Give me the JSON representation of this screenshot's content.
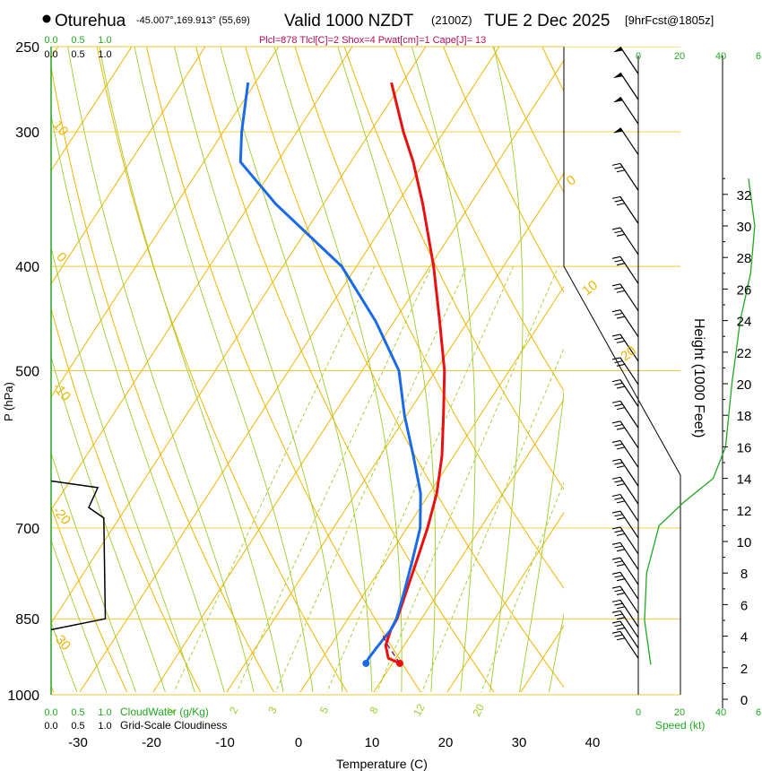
{
  "header": {
    "station": "Oturehua",
    "coords": "-45.007°,169.913° (55,69)",
    "valid": "Valid 1000 NZDT",
    "utc": "(2100Z)",
    "date": "TUE 2 Dec 2025",
    "forecast": "[9hrFcst@1805z]",
    "indices": "Plcl=878 Tlcl[C]=2 Shox=4 Pwat[cm]=1 Cape[J]= 13"
  },
  "colors": {
    "temperature": "#e81010",
    "dewpoint": "#1a6ae8",
    "isotherm": "#f0b400",
    "isobar": "#f0c830",
    "dry_adiabat": "#f0b400",
    "moist_adiabat": "#9ccc2c",
    "mixing_ratio": "#9ccc2c",
    "green_text": "#22a822",
    "parcel": "#7a2a7a",
    "index_text": "#b0105a"
  },
  "chart_data": {
    "type": "skew-t",
    "title": "Valid 1000 NZDT (2100Z) TUE 2 Dec 2025",
    "xlabel": "Temperature (C)",
    "ylabel": "P (hPa)",
    "x_ticks": [
      -30,
      -20,
      -10,
      0,
      10,
      20,
      30,
      40
    ],
    "p_ticks": [
      250,
      300,
      400,
      500,
      700,
      850,
      1000
    ],
    "height_label": "Height (1000 Feet)",
    "height_ticks": [
      0,
      2,
      4,
      6,
      8,
      10,
      12,
      14,
      16,
      18,
      20,
      22,
      24,
      26,
      28,
      30,
      32
    ],
    "isotherm_labels": [
      {
        "text": "10",
        "temp": 10,
        "pressure": 300
      },
      {
        "text": "0",
        "temp": 0,
        "pressure": 400
      },
      {
        "text": "-10",
        "temp": -10,
        "pressure": 535
      },
      {
        "text": "-20",
        "temp": -20,
        "pressure": 700
      },
      {
        "text": "-30",
        "temp": -30,
        "pressure": 905
      },
      {
        "text": "0",
        "temp": 0,
        "pressure": 332
      },
      {
        "text": "10",
        "temp": 10,
        "pressure": 430
      },
      {
        "text": "20",
        "temp": 20,
        "pressure": 500
      },
      {
        "text": "30",
        "temp": 30,
        "pressure": 590
      }
    ],
    "mixing_ratio_labels": [
      "1",
      "2",
      "3",
      "5",
      "8",
      "12",
      "20"
    ],
    "temperature": [
      {
        "p": 935,
        "t": 11.0
      },
      {
        "p": 925,
        "t": 9.0
      },
      {
        "p": 900,
        "t": 7.5
      },
      {
        "p": 870,
        "t": 6.8
      },
      {
        "p": 850,
        "t": 6.7
      },
      {
        "p": 800,
        "t": 5.5
      },
      {
        "p": 750,
        "t": 4.2
      },
      {
        "p": 700,
        "t": 2.8
      },
      {
        "p": 650,
        "t": 1.0
      },
      {
        "p": 600,
        "t": -1.6
      },
      {
        "p": 550,
        "t": -5.0
      },
      {
        "p": 500,
        "t": -8.8
      },
      {
        "p": 450,
        "t": -13.8
      },
      {
        "p": 400,
        "t": -19.5
      },
      {
        "p": 350,
        "t": -26.5
      },
      {
        "p": 320,
        "t": -31.5
      },
      {
        "p": 300,
        "t": -35.5
      },
      {
        "p": 270,
        "t": -41.5
      }
    ],
    "dewpoint": [
      {
        "p": 935,
        "t": 6.4
      },
      {
        "p": 925,
        "t": 6.3
      },
      {
        "p": 900,
        "t": 6.5
      },
      {
        "p": 870,
        "t": 6.8
      },
      {
        "p": 850,
        "t": 6.6
      },
      {
        "p": 800,
        "t": 5.2
      },
      {
        "p": 750,
        "t": 3.6
      },
      {
        "p": 700,
        "t": 1.8
      },
      {
        "p": 650,
        "t": -1.2
      },
      {
        "p": 600,
        "t": -5.5
      },
      {
        "p": 550,
        "t": -10.3
      },
      {
        "p": 500,
        "t": -15.0
      },
      {
        "p": 450,
        "t": -22.5
      },
      {
        "p": 400,
        "t": -32.0
      },
      {
        "p": 350,
        "t": -46.5
      },
      {
        "p": 320,
        "t": -55.0
      },
      {
        "p": 300,
        "t": -57.5
      },
      {
        "p": 270,
        "t": -61.0
      }
    ],
    "parcel": [
      {
        "p": 935,
        "t": 11.0
      },
      {
        "p": 900,
        "t": 7.8
      },
      {
        "p": 878,
        "t": 6.0
      }
    ],
    "cloudiness_profile": [
      {
        "p": 633,
        "v": 0.0
      },
      {
        "p": 642,
        "v": 0.62
      },
      {
        "p": 670,
        "v": 0.5
      },
      {
        "p": 685,
        "v": 0.7
      },
      {
        "p": 850,
        "v": 0.72
      },
      {
        "p": 870,
        "v": 0.0
      }
    ],
    "wind_speed_profile": [
      {
        "h": 2.2,
        "v": 0.6
      },
      {
        "h": 5,
        "v": 0.3
      },
      {
        "h": 8,
        "v": 0.4
      },
      {
        "h": 11,
        "v": 1.0
      },
      {
        "h": 12.5,
        "v": 2.2
      },
      {
        "h": 14,
        "v": 3.6
      },
      {
        "h": 16,
        "v": 4.2
      },
      {
        "h": 20,
        "v": 4.5
      },
      {
        "h": 24,
        "v": 4.9
      },
      {
        "h": 27,
        "v": 5.4
      },
      {
        "h": 30,
        "v": 5.6
      },
      {
        "h": 33,
        "v": 5.3
      }
    ],
    "wind_barbs": [
      {
        "p": 265,
        "flags": 1
      },
      {
        "p": 280,
        "flags": 1
      },
      {
        "p": 295,
        "flags": 1
      },
      {
        "p": 315,
        "flags": 1
      },
      {
        "p": 340,
        "flags": 0
      },
      {
        "p": 365,
        "flags": 0
      },
      {
        "p": 390,
        "flags": 0
      },
      {
        "p": 415,
        "flags": 0
      },
      {
        "p": 440,
        "flags": 0
      },
      {
        "p": 465,
        "flags": 0
      },
      {
        "p": 490,
        "flags": 0
      },
      {
        "p": 515,
        "flags": 0
      },
      {
        "p": 540,
        "flags": 0
      },
      {
        "p": 565,
        "flags": 0
      },
      {
        "p": 590,
        "flags": 0
      },
      {
        "p": 615,
        "flags": 0
      },
      {
        "p": 640,
        "flags": 0
      },
      {
        "p": 665,
        "flags": 0
      },
      {
        "p": 690,
        "flags": 0
      },
      {
        "p": 715,
        "flags": 0
      },
      {
        "p": 740,
        "flags": 0
      },
      {
        "p": 765,
        "flags": 0
      },
      {
        "p": 790,
        "flags": 0
      },
      {
        "p": 815,
        "flags": 0
      },
      {
        "p": 840,
        "flags": 0
      },
      {
        "p": 865,
        "flags": 0
      },
      {
        "p": 885,
        "flags": 0
      },
      {
        "p": 905,
        "flags": 0
      },
      {
        "p": 925,
        "flags": 0
      }
    ]
  },
  "legend": {
    "cloudwater": "CloudWater (g/Kg)",
    "cloudiness": "Grid-Scale Cloudiness",
    "speed": "Speed (kt)",
    "top_scale_green": [
      "0.0",
      "0.5",
      "1.0"
    ],
    "top_scale_black": [
      "0.0",
      "0.5",
      "1.0"
    ],
    "speed_top_green": [
      "0",
      "20",
      "40"
    ],
    "speed_top_right": "6",
    "speed_bottom_green": [
      "0",
      "20",
      "40"
    ],
    "speed_bottom_right": "6"
  }
}
